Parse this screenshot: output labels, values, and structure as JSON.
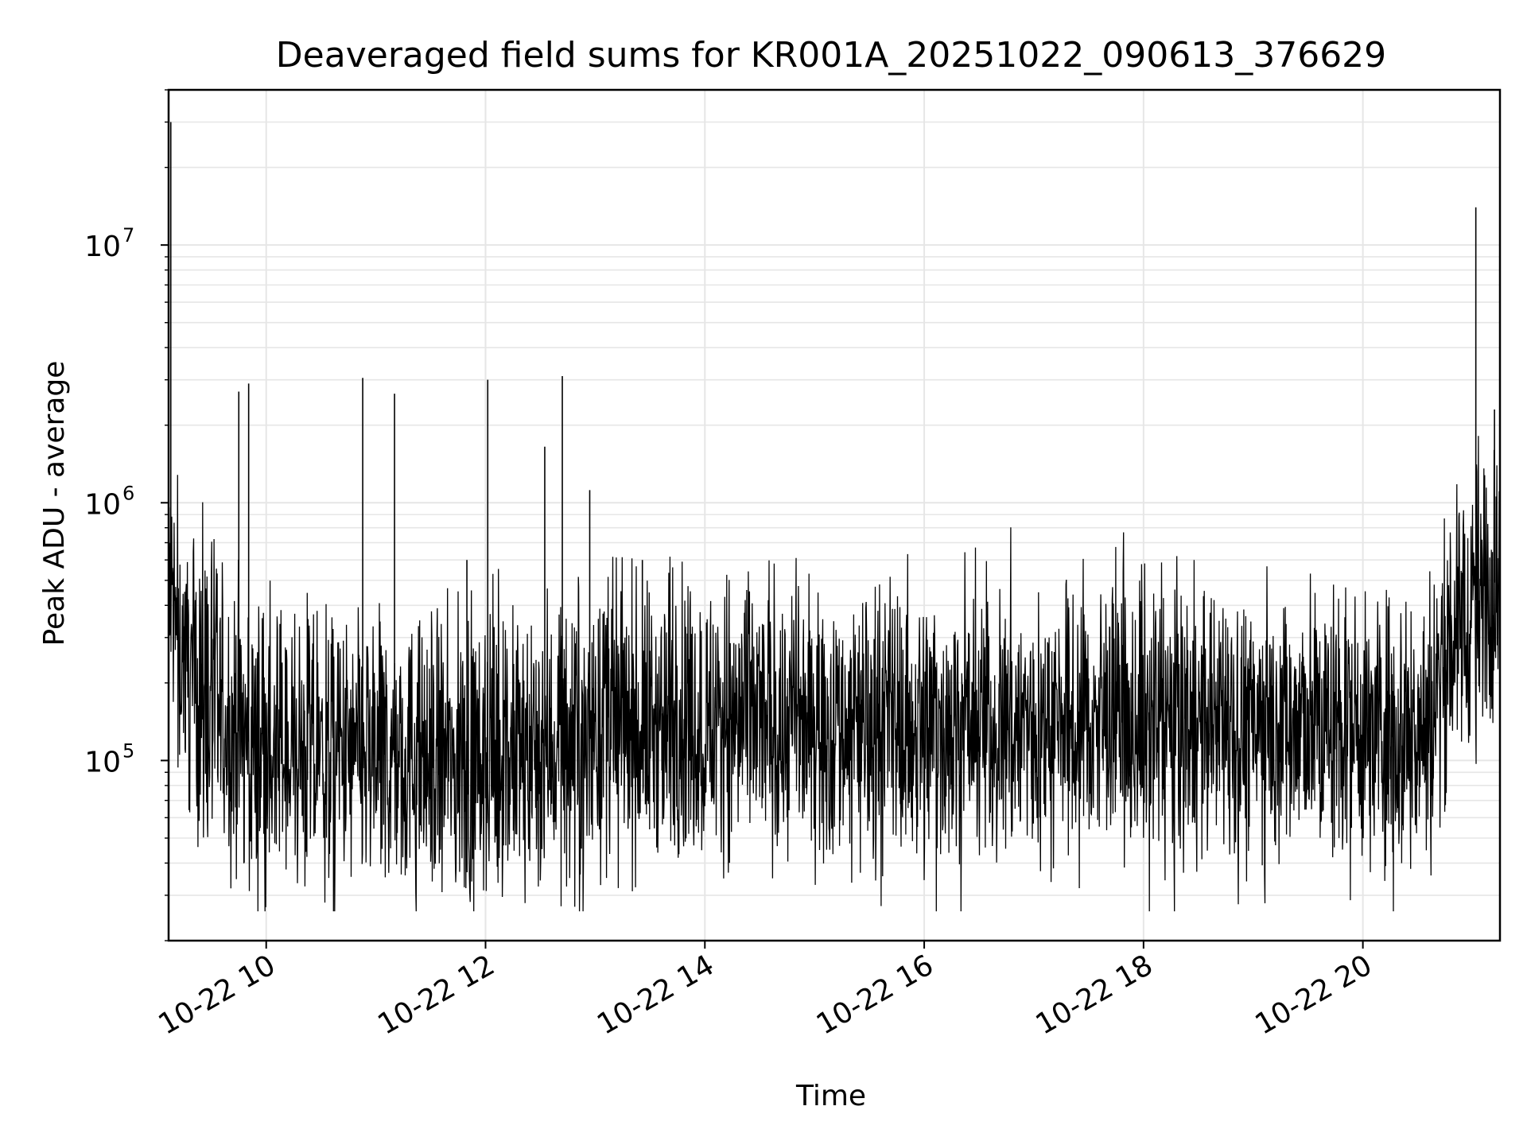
{
  "chart_data": {
    "type": "line",
    "title": "Deaveraged field sums for KR001A_20251022_090613_376629",
    "xlabel": "Time",
    "ylabel": "Peak ADU - average",
    "yscale": "log",
    "xlim": [
      9.11,
      21.25
    ],
    "ylim": [
      20000,
      40000000
    ],
    "grid": true,
    "line_color": "#000000",
    "grid_color": "#e6e6e6",
    "x_ticks": [
      {
        "value": 10,
        "label": "10-22 10"
      },
      {
        "value": 12,
        "label": "10-22 12"
      },
      {
        "value": 14,
        "label": "10-22 14"
      },
      {
        "value": 16,
        "label": "10-22 16"
      },
      {
        "value": 18,
        "label": "10-22 18"
      },
      {
        "value": 20,
        "label": "10-22 20"
      }
    ],
    "y_ticks": [
      {
        "value": 100000,
        "base": "10",
        "exp": "5"
      },
      {
        "value": 1000000,
        "base": "10",
        "exp": "6"
      },
      {
        "value": 10000000,
        "base": "10",
        "exp": "7"
      }
    ],
    "series": [
      {
        "name": "Peak ADU - average",
        "x": [
          9.11,
          9.15,
          9.2,
          9.25,
          9.3,
          9.35,
          9.4,
          9.45,
          9.5,
          9.55,
          9.6,
          9.65,
          9.7,
          9.75,
          9.8,
          9.85,
          9.9,
          9.95,
          10.0,
          10.1,
          10.2,
          10.3,
          10.4,
          10.5,
          10.6,
          10.7,
          10.8,
          10.9,
          11.0,
          11.1,
          11.2,
          11.3,
          11.4,
          11.5,
          11.6,
          11.7,
          11.8,
          11.9,
          12.0,
          12.1,
          12.2,
          12.3,
          12.4,
          12.5,
          12.6,
          12.7,
          12.8,
          12.9,
          13.0,
          13.1,
          13.2,
          13.3,
          13.4,
          13.5,
          13.6,
          13.7,
          13.8,
          13.9,
          14.0,
          14.2,
          14.4,
          14.6,
          14.8,
          15.0,
          15.2,
          15.4,
          15.6,
          15.8,
          16.0,
          16.2,
          16.4,
          16.6,
          16.8,
          17.0,
          17.2,
          17.4,
          17.6,
          17.8,
          18.0,
          18.2,
          18.4,
          18.6,
          18.8,
          19.0,
          19.2,
          19.4,
          19.6,
          19.8,
          20.0,
          20.2,
          20.4,
          20.55,
          20.65,
          20.75,
          20.85,
          20.95,
          21.05,
          21.15,
          21.25
        ],
        "y": [
          450000,
          380000,
          300000,
          260000,
          230000,
          210000,
          190000,
          175000,
          165000,
          150000,
          140000,
          135000,
          125000,
          130000,
          120000,
          118000,
          115000,
          112000,
          110000,
          108000,
          106000,
          105000,
          104000,
          103000,
          102000,
          101000,
          100000,
          100000,
          100000,
          99000,
          98000,
          98000,
          97000,
          97000,
          97000,
          97000,
          98000,
          98000,
          99000,
          100000,
          102000,
          105000,
          108000,
          112000,
          116000,
          120000,
          124000,
          127000,
          130000,
          132000,
          134000,
          135000,
          136000,
          137000,
          138000,
          139000,
          140000,
          140000,
          140000,
          141000,
          141000,
          141000,
          141000,
          141000,
          141000,
          140000,
          140000,
          140000,
          140000,
          140000,
          140000,
          140000,
          140000,
          140000,
          140000,
          140000,
          140000,
          140000,
          140000,
          140000,
          140000,
          140000,
          140000,
          140000,
          139000,
          138000,
          137000,
          136000,
          135000,
          134000,
          133000,
          135000,
          160000,
          260000,
          330000,
          380000,
          430000,
          480000,
          500000
        ],
        "spikes": [
          {
            "x": 9.13,
            "y": 30000000
          },
          {
            "x": 9.75,
            "y": 2700000
          },
          {
            "x": 9.84,
            "y": 2900000
          },
          {
            "x": 10.88,
            "y": 3050000
          },
          {
            "x": 11.17,
            "y": 2650000
          },
          {
            "x": 12.02,
            "y": 3000000
          },
          {
            "x": 12.54,
            "y": 1650000
          },
          {
            "x": 12.7,
            "y": 3100000
          },
          {
            "x": 12.95,
            "y": 1120000
          },
          {
            "x": 13.43,
            "y": 600000
          },
          {
            "x": 11.83,
            "y": 600000
          },
          {
            "x": 21.03,
            "y": 14000000
          },
          {
            "x": 21.2,
            "y": 2300000
          }
        ]
      }
    ]
  }
}
